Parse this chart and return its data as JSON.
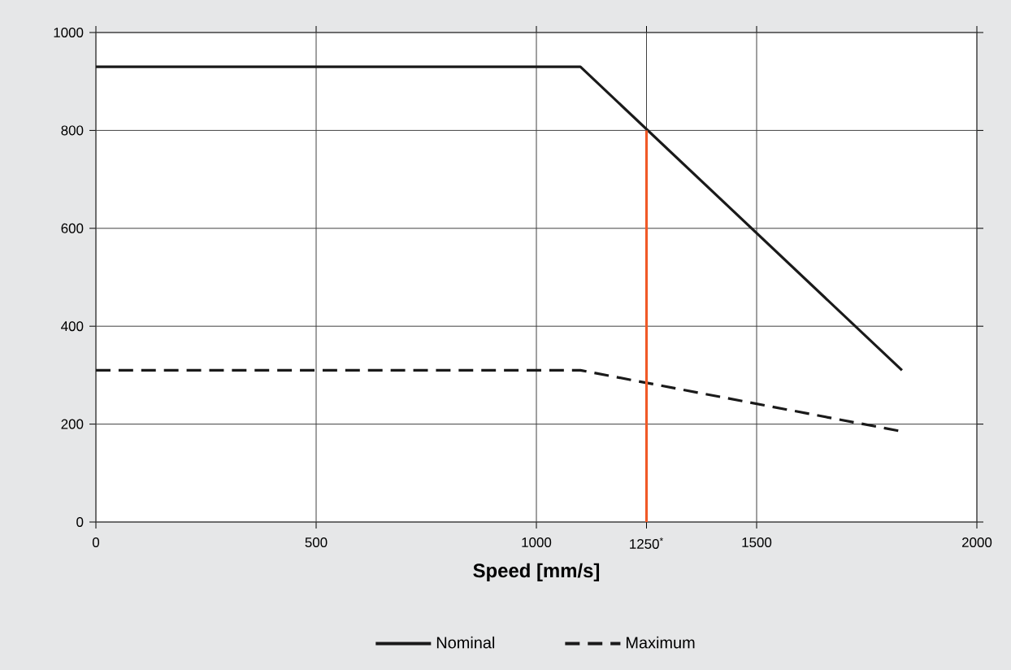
{
  "chart_data": {
    "type": "line",
    "xlabel": "Speed [mm/s]",
    "x": [
      0,
      1100,
      1830
    ],
    "series": [
      {
        "name": "Nominal",
        "color": "#1a1a1a",
        "values": [
          930,
          930,
          310
        ],
        "line_style": "solid"
      },
      {
        "name": "Maximum",
        "color": "#1a1a1a",
        "values": [
          310,
          310,
          185
        ],
        "line_style": "dashed"
      },
      {
        "color": "#f05a28",
        "x": [
          1250,
          1250
        ],
        "values": [
          0,
          800
        ],
        "line_style": "solid"
      }
    ],
    "xlim": [
      0,
      2000
    ],
    "xticks": [
      0,
      500,
      1000,
      {
        "value": 1250,
        "label": "1250$^{*}$"
      },
      1500,
      2000
    ],
    "ylim": [
      0,
      1000
    ],
    "yticks": [
      0,
      200,
      400,
      600,
      800,
      1000
    ],
    "grid": true,
    "legend": "bottom"
  }
}
